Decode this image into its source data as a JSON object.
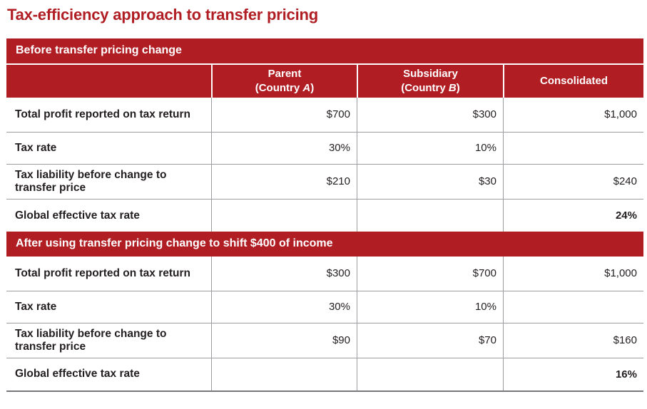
{
  "page_title": "Tax-efficiency approach to transfer pricing",
  "colors": {
    "brand_red": "#b01e24",
    "text_dark": "#231f20",
    "grid_gray": "#9b9da0",
    "bottom_gray": "#76777a",
    "white": "#ffffff"
  },
  "column_headers": [
    {
      "title": "Parent",
      "subtitle_prefix": "(Country ",
      "subtitle_letter": "A",
      "subtitle_suffix": ")"
    },
    {
      "title": "Subsidiary",
      "subtitle_prefix": "(Country ",
      "subtitle_letter": "B",
      "subtitle_suffix": ")"
    },
    {
      "title": "Consolidated"
    }
  ],
  "sections": [
    {
      "header": "Before transfer pricing change",
      "rows": [
        {
          "label": "Total profit reported on tax return",
          "parent": "$700",
          "subsidiary": "$300",
          "consolidated": "$1,000"
        },
        {
          "label": "Tax rate",
          "parent": "30%",
          "subsidiary": "10%",
          "consolidated": ""
        },
        {
          "label": "Tax liability before change to transfer price",
          "parent": "$210",
          "subsidiary": "$30",
          "consolidated": "$240"
        },
        {
          "label": "Global effective tax rate",
          "parent": "",
          "subsidiary": "",
          "consolidated": "24%"
        }
      ]
    },
    {
      "header": "After using transfer pricing change to shift $400 of income",
      "rows": [
        {
          "label": "Total profit reported on tax return",
          "parent": "$300",
          "subsidiary": "$700",
          "consolidated": "$1,000"
        },
        {
          "label": "Tax rate",
          "parent": "30%",
          "subsidiary": "10%",
          "consolidated": ""
        },
        {
          "label": "Tax liability before change to transfer price",
          "parent": "$90",
          "subsidiary": "$70",
          "consolidated": "$160"
        },
        {
          "label": "Global effective tax rate",
          "parent": "",
          "subsidiary": "",
          "consolidated": "16%"
        }
      ]
    }
  ]
}
